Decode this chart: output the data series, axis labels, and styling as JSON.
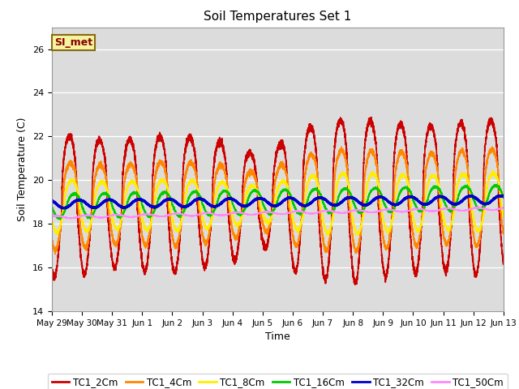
{
  "title": "Soil Temperatures Set 1",
  "xlabel": "Time",
  "ylabel": "Soil Temperature (C)",
  "ylim": [
    14,
    27
  ],
  "yticks": [
    14,
    16,
    18,
    20,
    22,
    24,
    26
  ],
  "background_color": "#dcdcdc",
  "annotation_text": "SI_met",
  "annotation_color": "#8b0000",
  "annotation_bg": "#f5f5a0",
  "annotation_border": "#8b6914",
  "series": [
    {
      "label": "TC1_2Cm",
      "color": "#cc0000",
      "lw": 1.2
    },
    {
      "label": "TC1_4Cm",
      "color": "#ff8800",
      "lw": 1.2
    },
    {
      "label": "TC1_8Cm",
      "color": "#ffee00",
      "lw": 1.2
    },
    {
      "label": "TC1_16Cm",
      "color": "#00cc00",
      "lw": 1.2
    },
    {
      "label": "TC1_32Cm",
      "color": "#0000cc",
      "lw": 2.0
    },
    {
      "label": "TC1_50Cm",
      "color": "#ff88ff",
      "lw": 1.2
    }
  ],
  "xtick_labels": [
    "May 29",
    "May 30",
    "May 31",
    "Jun 1",
    "Jun 2",
    "Jun 3",
    "Jun 4",
    "Jun 5",
    "Jun 6",
    "Jun 7",
    "Jun 8",
    "Jun 9",
    "Jun 10",
    "Jun 11",
    "Jun 12",
    "Jun 13"
  ],
  "n_points": 7200,
  "days": 15
}
